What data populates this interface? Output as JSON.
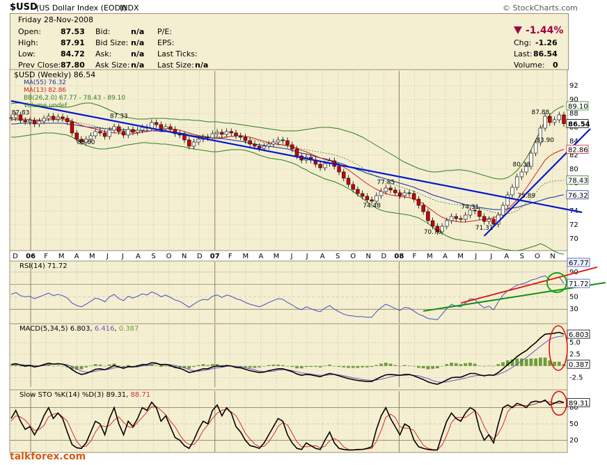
{
  "title": {
    "symbol": "$USD",
    "name": "(US Dollar Index (EOD))",
    "exchange": "INDX",
    "credit": "© StockCharts.com",
    "footer": "talkforex.com"
  },
  "quote": {
    "date": "Friday  28-Nov-2008",
    "labels": [
      "Open:",
      "High:",
      "Low:",
      "Prev Close:"
    ],
    "values": [
      "87.53",
      "87.91",
      "84.72",
      "87.80"
    ],
    "mid_labels": [
      "Bid:",
      "Bid Size:",
      "Ask:",
      "Ask Size:"
    ],
    "mid_values": [
      "n/a",
      "n/a",
      "n/a",
      "n/a"
    ],
    "right_labels": [
      "P/E:",
      "EPS:",
      "Last Ticks:",
      "Last Size:"
    ],
    "last_size": "n/a",
    "pct_change": "-1.44%",
    "summary_labels": [
      "Chg:",
      "Last:",
      "Volume:"
    ],
    "summary_values": [
      "-1.26",
      "86.54",
      "0"
    ]
  },
  "legend": {
    "main": "$USD (Weekly) 86.54",
    "ma55": "MA(55) 76.32",
    "ma13": "MA(13) 82.86",
    "bb": "BB(26,2.0) 67.77 - 78.43 - 89.10",
    "volume": "Volume undef"
  },
  "indicators": {
    "rsi_label": "RSI(14) 71.72",
    "macd_prefix": "MACD(5,34,5)",
    "macd_values": [
      "6.803",
      "6.416",
      "0.387"
    ],
    "sto_prefix": "Slow STO %K(14) %D(3)",
    "sto_values": [
      "89.31",
      "88.71"
    ]
  },
  "colors": {
    "panel_bg": "#f5efd2",
    "grid": "#c8c0a0",
    "up": "#ffffff",
    "down": "#cc0000",
    "bb": "#2e7d1f",
    "ma55": "#1a2f9e",
    "ma13": "#d02020",
    "trend_blue": "#0018d0",
    "trend_green": "#10901a",
    "trend_red": "#e01010",
    "volume_hist": "#6b9e3a",
    "neg_change": "#a00040",
    "rsi_line": "#4050c0",
    "macd_line": "#000000",
    "signal_line": "#7050c0",
    "sto_k": "#000000",
    "sto_d": "#d03030"
  },
  "chart_data": {
    "type": "candlestick",
    "x_tick_labels": [
      "D",
      "06",
      "F",
      "M",
      "A",
      "M",
      "J",
      "J",
      "A",
      "S",
      "O",
      "N",
      "D",
      "07",
      "F",
      "M",
      "A",
      "M",
      "J",
      "J",
      "A",
      "S",
      "O",
      "N",
      "D",
      "08",
      "F",
      "M",
      "A",
      "M",
      "J",
      "J",
      "A",
      "S",
      "O",
      "N"
    ],
    "price_axis": [
      70,
      72,
      74,
      76,
      78,
      80,
      82,
      84,
      86,
      88,
      90,
      92
    ],
    "ylim": [
      68.5,
      93.5
    ],
    "last_price": "86.54",
    "price_annotations": [
      {
        "label": "87.83",
        "x": 2,
        "y": 87.83
      },
      {
        "label": "83.60",
        "x": 16,
        "y": 83.6
      },
      {
        "label": "87.33",
        "x": 23,
        "y": 87.33
      },
      {
        "label": "77.85",
        "x": 80,
        "y": 77.85
      },
      {
        "label": "74.48",
        "x": 77,
        "y": 74.48
      },
      {
        "label": "74.31",
        "x": 98,
        "y": 74.31
      },
      {
        "label": "70.70",
        "x": 90,
        "y": 70.7
      },
      {
        "label": "71.31",
        "x": 101,
        "y": 71.31
      },
      {
        "label": "80.38",
        "x": 109,
        "y": 80.38
      },
      {
        "label": "75.89",
        "x": 110,
        "y": 75.89
      },
      {
        "label": "83.90",
        "x": 114,
        "y": 83.9
      },
      {
        "label": "87.88",
        "x": 113,
        "y": 87.88
      }
    ],
    "right_tags": [
      {
        "label": "89.10",
        "y": 89.1
      },
      {
        "label": "86.54",
        "y": 86.54
      },
      {
        "label": "82.86",
        "y": 82.86
      },
      {
        "label": "78.43",
        "y": 78.43
      },
      {
        "label": "76.32",
        "y": 76.32
      }
    ],
    "rsi_axis": [
      30,
      50,
      70,
      90
    ],
    "rsi_tags": [
      "67.77",
      "71.72"
    ],
    "macd_axis": [
      "5.0",
      "2.5",
      "0.0",
      "-2.5"
    ],
    "macd_tags": [
      "6.803",
      "0.387"
    ],
    "sto_axis": [
      20,
      50,
      80
    ],
    "sto_tag": "89.31",
    "close": [
      87.4,
      87.8,
      87.0,
      86.8,
      87.0,
      86.5,
      86.9,
      87.3,
      87.6,
      87.2,
      87.5,
      87.3,
      86.8,
      85.2,
      84.3,
      83.9,
      84.3,
      84.8,
      85.4,
      85.2,
      84.7,
      85.6,
      86.1,
      85.4,
      84.9,
      85.7,
      85.3,
      85.6,
      86.0,
      85.9,
      86.7,
      86.4,
      85.8,
      86.1,
      85.7,
      85.1,
      84.9,
      84.2,
      83.3,
      83.9,
      84.3,
      84.6,
      84.5,
      85.1,
      85.3,
      85.0,
      85.4,
      85.2,
      84.8,
      84.6,
      84.1,
      83.6,
      83.3,
      83.0,
      83.3,
      83.6,
      83.9,
      84.2,
      84.1,
      83.5,
      82.9,
      81.9,
      81.3,
      81.7,
      81.3,
      80.7,
      80.2,
      80.8,
      81.2,
      80.4,
      79.6,
      78.7,
      77.8,
      77.1,
      76.5,
      76.1,
      75.6,
      75.4,
      76.2,
      76.8,
      77.3,
      77.0,
      76.6,
      76.2,
      76.6,
      76.5,
      75.7,
      74.8,
      73.9,
      72.6,
      71.8,
      71.0,
      71.8,
      72.6,
      73.2,
      72.9,
      72.8,
      73.4,
      74.1,
      74.0,
      73.2,
      72.5,
      72.8,
      72.1,
      73.4,
      74.8,
      76.3,
      77.4,
      78.9,
      79.6,
      80.4,
      82.3,
      83.8,
      85.9,
      87.6,
      86.7,
      87.1,
      87.8,
      86.54
    ],
    "ma55": [
      86.5,
      86.5,
      86.6,
      86.6,
      86.6,
      86.6,
      86.6,
      86.6,
      86.6,
      86.6,
      86.6,
      86.6,
      86.5,
      86.4,
      86.3,
      86.2,
      86.1,
      86.0,
      86.0,
      85.9,
      85.8,
      85.8,
      85.8,
      85.7,
      85.7,
      85.6,
      85.6,
      85.5,
      85.5,
      85.5,
      85.5,
      85.5,
      85.4,
      85.4,
      85.4,
      85.3,
      85.2,
      85.1,
      84.9,
      84.8,
      84.7,
      84.6,
      84.5,
      84.5,
      84.4,
      84.4,
      84.3,
      84.2,
      84.1,
      84.0,
      83.9,
      83.7,
      83.6,
      83.5,
      83.4,
      83.3,
      83.2,
      83.1,
      83.0,
      82.9,
      82.7,
      82.5,
      82.3,
      82.2,
      82.0,
      81.8,
      81.6,
      81.5,
      81.3,
      81.1,
      80.9,
      80.7,
      80.4,
      80.2,
      79.9,
      79.7,
      79.4,
      79.2,
      79.0,
      78.8,
      78.6,
      78.4,
      78.2,
      78.0,
      77.8,
      77.6,
      77.4,
      77.1,
      76.9,
      76.6,
      76.3,
      76.1,
      75.9,
      75.7,
      75.5,
      75.3,
      75.1,
      74.9,
      74.8,
      74.7,
      74.5,
      74.4,
      74.3,
      74.2,
      74.2,
      74.2,
      74.3,
      74.4,
      74.5,
      74.7,
      74.9,
      75.1,
      75.3,
      75.5,
      75.7,
      75.9,
      76.0,
      76.2,
      76.32
    ],
    "ma13": [
      87.1,
      87.2,
      87.2,
      87.2,
      87.1,
      87.0,
      87.0,
      87.0,
      87.1,
      87.1,
      87.2,
      87.2,
      87.1,
      86.9,
      86.6,
      86.3,
      86.1,
      85.9,
      85.8,
      85.6,
      85.4,
      85.3,
      85.2,
      85.2,
      85.1,
      85.0,
      85.1,
      85.2,
      85.3,
      85.4,
      85.5,
      85.6,
      85.7,
      85.8,
      85.8,
      85.7,
      85.6,
      85.4,
      85.2,
      85.0,
      84.8,
      84.7,
      84.6,
      84.5,
      84.5,
      84.5,
      84.6,
      84.7,
      84.8,
      84.8,
      84.7,
      84.6,
      84.4,
      84.2,
      84.0,
      83.8,
      83.7,
      83.6,
      83.5,
      83.4,
      83.2,
      83.0,
      82.7,
      82.5,
      82.2,
      81.9,
      81.6,
      81.4,
      81.2,
      81.0,
      80.7,
      80.3,
      79.9,
      79.4,
      78.9,
      78.4,
      77.9,
      77.5,
      77.1,
      76.8,
      76.5,
      76.3,
      76.2,
      76.1,
      76.0,
      75.9,
      75.7,
      75.4,
      75.0,
      74.5,
      74.0,
      73.5,
      73.1,
      72.8,
      72.6,
      72.5,
      72.4,
      72.4,
      72.5,
      72.6,
      72.7,
      72.8,
      72.9,
      73.0,
      73.3,
      73.7,
      74.2,
      74.9,
      75.6,
      76.4,
      77.3,
      78.3,
      79.3,
      80.3,
      81.3,
      81.9,
      82.3,
      82.6,
      82.86
    ],
    "bb_upper": [
      89.4,
      89.5,
      89.5,
      89.4,
      89.3,
      89.2,
      89.1,
      89.0,
      89.0,
      89.0,
      89.0,
      88.9,
      88.9,
      89.0,
      89.2,
      89.4,
      89.5,
      89.5,
      89.3,
      89.1,
      88.8,
      88.5,
      88.2,
      87.9,
      87.6,
      87.4,
      87.3,
      87.2,
      87.2,
      87.2,
      87.3,
      87.3,
      87.3,
      87.3,
      87.2,
      87.2,
      87.1,
      87.1,
      87.1,
      87.0,
      87.0,
      86.9,
      86.8,
      86.8,
      86.8,
      86.7,
      86.6,
      86.6,
      86.5,
      86.4,
      86.3,
      86.2,
      86.1,
      86.0,
      85.9,
      85.8,
      85.7,
      85.6,
      85.5,
      85.5,
      85.5,
      85.5,
      85.6,
      85.7,
      85.8,
      85.9,
      86.0,
      86.0,
      86.0,
      85.9,
      85.8,
      85.6,
      85.4,
      85.2,
      84.9,
      84.6,
      84.2,
      83.8,
      83.4,
      83.0,
      82.6,
      82.2,
      81.8,
      81.4,
      81.0,
      80.7,
      80.4,
      80.1,
      79.9,
      79.7,
      79.6,
      79.6,
      79.7,
      79.8,
      79.8,
      79.9,
      79.9,
      79.8,
      79.7,
      79.5,
      79.3,
      79.1,
      78.9,
      78.7,
      78.6,
      78.6,
      78.8,
      79.2,
      79.8,
      80.6,
      81.6,
      82.8,
      84.2,
      85.6,
      86.9,
      87.8,
      88.4,
      88.8,
      89.1
    ],
    "bb_lower": [
      84.6,
      84.6,
      84.7,
      84.8,
      84.9,
      85.0,
      85.1,
      85.2,
      85.2,
      85.2,
      85.1,
      85.0,
      84.9,
      84.6,
      84.2,
      83.8,
      83.4,
      83.2,
      83.0,
      82.9,
      82.9,
      83.0,
      83.1,
      83.2,
      83.4,
      83.5,
      83.6,
      83.7,
      83.8,
      83.8,
      83.7,
      83.7,
      83.6,
      83.6,
      83.5,
      83.4,
      83.3,
      83.2,
      83.0,
      82.9,
      82.8,
      82.7,
      82.6,
      82.5,
      82.5,
      82.6,
      82.7,
      82.8,
      82.8,
      82.8,
      82.7,
      82.5,
      82.3,
      82.0,
      81.8,
      81.6,
      81.5,
      81.4,
      81.3,
      81.1,
      80.9,
      80.6,
      80.2,
      79.9,
      79.5,
      79.2,
      78.9,
      78.6,
      78.4,
      78.2,
      77.9,
      77.6,
      77.2,
      76.8,
      76.3,
      75.8,
      75.3,
      74.8,
      74.4,
      74.1,
      73.9,
      73.8,
      73.7,
      73.6,
      73.5,
      73.4,
      73.2,
      73.0,
      72.6,
      72.2,
      71.7,
      71.2,
      70.8,
      70.4,
      70.1,
      69.9,
      69.8,
      69.7,
      69.6,
      69.5,
      69.4,
      69.3,
      69.1,
      68.9,
      68.7,
      68.5,
      68.4,
      68.3,
      68.3,
      68.4,
      68.6,
      68.8,
      69.0,
      69.3,
      69.0,
      68.6,
      68.2,
      67.9,
      67.77
    ],
    "rsi": [
      54,
      57,
      52,
      50,
      51,
      47,
      50,
      53,
      56,
      52,
      54,
      52,
      48,
      40,
      36,
      34,
      38,
      43,
      48,
      46,
      42,
      50,
      54,
      47,
      44,
      51,
      48,
      51,
      55,
      53,
      58,
      55,
      50,
      53,
      49,
      45,
      43,
      38,
      33,
      38,
      43,
      46,
      45,
      51,
      53,
      49,
      53,
      51,
      47,
      45,
      41,
      38,
      36,
      34,
      37,
      41,
      44,
      47,
      46,
      41,
      37,
      32,
      29,
      34,
      31,
      28,
      26,
      32,
      36,
      30,
      26,
      22,
      20,
      19,
      18,
      18,
      17,
      17,
      26,
      33,
      38,
      35,
      31,
      28,
      33,
      32,
      27,
      22,
      19,
      15,
      14,
      13,
      22,
      31,
      38,
      35,
      34,
      40,
      47,
      46,
      38,
      32,
      35,
      29,
      42,
      53,
      60,
      64,
      69,
      71,
      73,
      77,
      79,
      82,
      84,
      78,
      80,
      82,
      71.72
    ],
    "macd": [
      0.3,
      0.5,
      0.2,
      0.0,
      0.1,
      -0.2,
      0.0,
      0.3,
      0.6,
      0.4,
      0.5,
      0.4,
      0.0,
      -0.8,
      -1.4,
      -1.8,
      -1.6,
      -1.2,
      -0.7,
      -0.6,
      -0.8,
      -0.4,
      0.1,
      -0.2,
      -0.5,
      -0.1,
      -0.2,
      0.0,
      0.3,
      0.3,
      0.7,
      0.6,
      0.2,
      0.3,
      0.1,
      -0.3,
      -0.5,
      -0.9,
      -1.4,
      -1.2,
      -0.9,
      -0.6,
      -0.6,
      -0.2,
      0.0,
      -0.1,
      0.1,
      0.0,
      -0.3,
      -0.4,
      -0.7,
      -1.0,
      -1.2,
      -1.4,
      -1.3,
      -1.0,
      -0.8,
      -0.6,
      -0.6,
      -0.9,
      -1.2,
      -1.7,
      -2.0,
      -1.8,
      -1.9,
      -2.1,
      -2.3,
      -1.9,
      -1.6,
      -1.8,
      -2.1,
      -2.4,
      -2.7,
      -2.9,
      -3.1,
      -3.2,
      -3.3,
      -3.3,
      -2.8,
      -2.3,
      -1.9,
      -1.8,
      -1.9,
      -2.0,
      -1.8,
      -1.8,
      -2.1,
      -2.5,
      -2.9,
      -3.4,
      -3.7,
      -3.9,
      -3.5,
      -3.0,
      -2.5,
      -2.4,
      -2.4,
      -2.0,
      -1.6,
      -1.6,
      -1.9,
      -2.1,
      -1.9,
      -2.0,
      -1.4,
      -0.6,
      0.3,
      1.1,
      2.0,
      2.7,
      3.3,
      4.2,
      5.0,
      6.0,
      6.8,
      6.9,
      7.0,
      7.2,
      6.803
    ],
    "macd_signal": [
      0.2,
      0.3,
      0.3,
      0.2,
      0.2,
      0.1,
      0.0,
      0.1,
      0.3,
      0.4,
      0.4,
      0.4,
      0.3,
      -0.1,
      -0.6,
      -1.1,
      -1.3,
      -1.3,
      -1.1,
      -0.9,
      -0.8,
      -0.7,
      -0.4,
      -0.3,
      -0.3,
      -0.3,
      -0.2,
      -0.2,
      0.0,
      0.1,
      0.3,
      0.5,
      0.4,
      0.4,
      0.3,
      0.1,
      -0.1,
      -0.4,
      -0.8,
      -1.0,
      -1.1,
      -1.0,
      -0.8,
      -0.6,
      -0.4,
      -0.3,
      -0.1,
      0.0,
      -0.1,
      -0.2,
      -0.4,
      -0.6,
      -0.8,
      -1.1,
      -1.2,
      -1.2,
      -1.1,
      -0.9,
      -0.8,
      -0.8,
      -1.0,
      -1.2,
      -1.5,
      -1.6,
      -1.7,
      -1.9,
      -2.0,
      -2.0,
      -1.9,
      -1.8,
      -1.9,
      -2.1,
      -2.3,
      -2.5,
      -2.7,
      -2.9,
      -3.0,
      -3.1,
      -3.0,
      -2.8,
      -2.6,
      -2.3,
      -2.1,
      -2.0,
      -2.0,
      -1.9,
      -2.0,
      -2.1,
      -2.4,
      -2.7,
      -3.1,
      -3.4,
      -3.5,
      -3.4,
      -3.2,
      -3.0,
      -2.8,
      -2.6,
      -2.3,
      -2.1,
      -2.0,
      -2.0,
      -2.0,
      -2.0,
      -1.8,
      -1.4,
      -0.9,
      -0.3,
      0.4,
      1.1,
      1.8,
      2.6,
      3.4,
      4.2,
      5.0,
      5.7,
      6.1,
      6.3,
      6.416
    ],
    "macd_hist": [
      0.1,
      0.2,
      -0.1,
      -0.2,
      -0.1,
      -0.3,
      0.0,
      0.2,
      0.3,
      0.0,
      0.1,
      0.0,
      -0.3,
      -0.7,
      -0.8,
      -0.7,
      -0.3,
      0.1,
      0.4,
      0.3,
      0.0,
      0.3,
      0.5,
      0.1,
      -0.2,
      0.2,
      0.0,
      0.2,
      0.3,
      0.2,
      0.4,
      0.1,
      -0.2,
      -0.1,
      -0.2,
      -0.4,
      -0.4,
      -0.5,
      -0.6,
      -0.2,
      0.2,
      0.4,
      0.2,
      0.4,
      0.4,
      0.2,
      0.2,
      0.0,
      -0.2,
      -0.2,
      -0.3,
      -0.4,
      -0.4,
      -0.3,
      -0.1,
      0.2,
      0.3,
      0.3,
      0.2,
      -0.1,
      -0.2,
      -0.5,
      -0.5,
      -0.2,
      -0.2,
      -0.2,
      -0.3,
      0.1,
      0.3,
      0.0,
      -0.2,
      -0.3,
      -0.4,
      -0.4,
      -0.4,
      -0.3,
      -0.3,
      -0.2,
      0.2,
      0.5,
      0.7,
      0.5,
      0.2,
      0.0,
      0.2,
      0.1,
      -0.1,
      -0.4,
      -0.5,
      -0.7,
      -0.6,
      -0.5,
      0.0,
      0.4,
      0.7,
      0.6,
      0.4,
      0.6,
      0.7,
      0.5,
      0.1,
      -0.1,
      0.1,
      0.0,
      0.4,
      0.8,
      1.2,
      1.4,
      1.6,
      1.6,
      1.5,
      1.6,
      1.6,
      1.8,
      1.8,
      1.2,
      0.9,
      0.9,
      0.387
    ],
    "sto_k": [
      60,
      75,
      55,
      40,
      45,
      30,
      45,
      65,
      80,
      60,
      70,
      60,
      35,
      12,
      6,
      5,
      15,
      35,
      55,
      50,
      30,
      60,
      80,
      50,
      30,
      55,
      45,
      60,
      80,
      75,
      90,
      80,
      55,
      65,
      45,
      25,
      20,
      10,
      5,
      20,
      40,
      55,
      50,
      75,
      85,
      65,
      80,
      70,
      45,
      35,
      20,
      10,
      8,
      5,
      15,
      30,
      45,
      60,
      55,
      30,
      15,
      5,
      3,
      15,
      10,
      5,
      3,
      20,
      35,
      15,
      5,
      3,
      2,
      2,
      3,
      3,
      5,
      8,
      40,
      65,
      80,
      60,
      45,
      30,
      50,
      45,
      20,
      8,
      5,
      3,
      2,
      2,
      30,
      55,
      70,
      60,
      55,
      70,
      80,
      75,
      40,
      20,
      30,
      15,
      50,
      80,
      85,
      80,
      88,
      85,
      80,
      90,
      92,
      90,
      94,
      85,
      88,
      92,
      89.31
    ],
    "sto_d": [
      55,
      65,
      63,
      57,
      47,
      38,
      40,
      47,
      63,
      68,
      70,
      63,
      55,
      36,
      18,
      8,
      9,
      18,
      35,
      47,
      45,
      47,
      57,
      63,
      53,
      45,
      43,
      53,
      62,
      72,
      82,
      82,
      75,
      67,
      55,
      45,
      30,
      18,
      12,
      12,
      22,
      38,
      48,
      60,
      70,
      75,
      77,
      72,
      65,
      50,
      33,
      22,
      13,
      8,
      9,
      17,
      30,
      45,
      53,
      48,
      33,
      17,
      8,
      8,
      9,
      10,
      6,
      9,
      19,
      23,
      18,
      8,
      3,
      2,
      2,
      3,
      4,
      5,
      18,
      38,
      62,
      68,
      62,
      45,
      42,
      42,
      38,
      24,
      11,
      5,
      3,
      2,
      11,
      29,
      52,
      62,
      62,
      62,
      68,
      75,
      65,
      45,
      30,
      22,
      32,
      48,
      72,
      82,
      84,
      84,
      84,
      85,
      87,
      91,
      92,
      90,
      89,
      88,
      88.71
    ]
  }
}
